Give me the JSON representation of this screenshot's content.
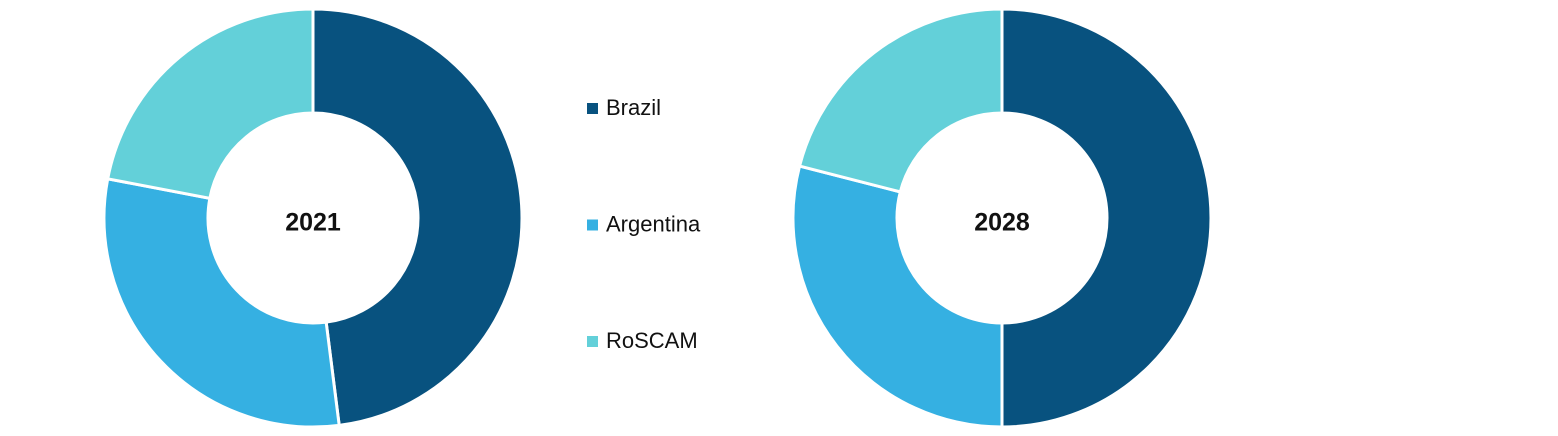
{
  "chart_data": {
    "type": "donut",
    "categories": [
      "Brazil",
      "Argentina",
      "RoSCAM"
    ],
    "colors": [
      "#08527f",
      "#35b0e2",
      "#63d0d9"
    ],
    "series": [
      {
        "name": "2021",
        "values": [
          48,
          30,
          22
        ]
      },
      {
        "name": "2028",
        "values": [
          50,
          29,
          21
        ]
      }
    ]
  }
}
